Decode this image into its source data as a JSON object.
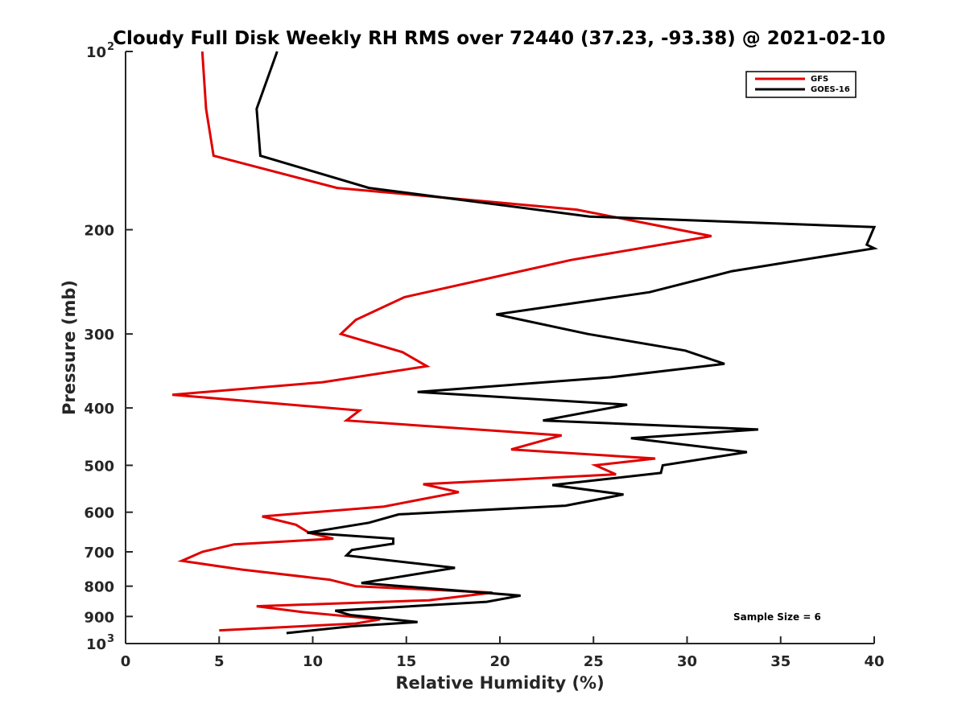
{
  "chart_data": {
    "type": "line",
    "title": "Cloudy Full Disk Weekly RH RMS over 72440 (37.23, -93.38) @ 2021-02-10",
    "xlabel": "Relative Humidity (%)",
    "ylabel": "Pressure (mb)",
    "xlim": [
      0,
      40
    ],
    "ylim": [
      100,
      1000
    ],
    "y_scale": "log",
    "y_reversed": true,
    "x_ticks": [
      "0",
      "5",
      "10",
      "15",
      "20",
      "25",
      "30",
      "35",
      "40"
    ],
    "y_ticks": [
      {
        "value": 100,
        "label": "10",
        "sup": "2"
      },
      {
        "value": 200,
        "label": "200",
        "sup": ""
      },
      {
        "value": 300,
        "label": "300",
        "sup": ""
      },
      {
        "value": 400,
        "label": "400",
        "sup": ""
      },
      {
        "value": 500,
        "label": "500",
        "sup": ""
      },
      {
        "value": 600,
        "label": "600",
        "sup": ""
      },
      {
        "value": 700,
        "label": "700",
        "sup": ""
      },
      {
        "value": 800,
        "label": "800",
        "sup": ""
      },
      {
        "value": 900,
        "label": "900",
        "sup": ""
      },
      {
        "value": 1000,
        "label": "10",
        "sup": "3"
      }
    ],
    "grid": false,
    "legend_position": "top-right",
    "annotation": "Sample Size = 6",
    "series": [
      {
        "name": "GFS",
        "color": "#e00000",
        "points": [
          [
            4.1,
            100
          ],
          [
            4.3,
            125
          ],
          [
            4.7,
            150
          ],
          [
            11.3,
            170
          ],
          [
            24.1,
            185
          ],
          [
            31.3,
            205
          ],
          [
            23.8,
            225
          ],
          [
            14.9,
            260
          ],
          [
            12.3,
            284
          ],
          [
            11.5,
            300
          ],
          [
            14.8,
            322
          ],
          [
            16.1,
            340
          ],
          [
            10.5,
            362
          ],
          [
            2.5,
            380
          ],
          [
            12.5,
            404
          ],
          [
            11.8,
            420
          ],
          [
            23.3,
            445
          ],
          [
            20.6,
            470
          ],
          [
            28.3,
            487
          ],
          [
            25.1,
            500
          ],
          [
            26.2,
            518
          ],
          [
            15.9,
            538
          ],
          [
            17.8,
            555
          ],
          [
            13.8,
            587
          ],
          [
            7.3,
            610
          ],
          [
            9.1,
            630
          ],
          [
            9.8,
            650
          ],
          [
            11.1,
            665
          ],
          [
            5.8,
            680
          ],
          [
            4.1,
            700
          ],
          [
            3.0,
            725
          ],
          [
            6.2,
            750
          ],
          [
            10.9,
            780
          ],
          [
            12.3,
            800
          ],
          [
            19.6,
            820
          ],
          [
            16.2,
            845
          ],
          [
            7.0,
            865
          ],
          [
            9.5,
            885
          ],
          [
            13.6,
            910
          ],
          [
            12.3,
            925
          ],
          [
            5.0,
            950
          ]
        ]
      },
      {
        "name": "GOES-16",
        "color": "#000000",
        "points": [
          [
            8.1,
            100
          ],
          [
            7.0,
            125
          ],
          [
            7.2,
            150
          ],
          [
            13.0,
            170
          ],
          [
            24.8,
            190
          ],
          [
            40.0,
            198
          ],
          [
            39.6,
            212
          ],
          [
            40.0,
            215
          ],
          [
            32.4,
            235
          ],
          [
            28.0,
            255
          ],
          [
            19.8,
            278
          ],
          [
            24.7,
            300
          ],
          [
            29.9,
            320
          ],
          [
            32.0,
            337
          ],
          [
            25.9,
            355
          ],
          [
            15.6,
            376
          ],
          [
            26.8,
            395
          ],
          [
            22.3,
            420
          ],
          [
            33.8,
            435
          ],
          [
            27.0,
            450
          ],
          [
            33.2,
            475
          ],
          [
            28.7,
            500
          ],
          [
            28.6,
            515
          ],
          [
            22.8,
            540
          ],
          [
            26.6,
            560
          ],
          [
            23.5,
            585
          ],
          [
            14.6,
            605
          ],
          [
            13.0,
            625
          ],
          [
            9.7,
            650
          ],
          [
            14.3,
            665
          ],
          [
            14.3,
            678
          ],
          [
            12.1,
            695
          ],
          [
            11.8,
            710
          ],
          [
            17.6,
            745
          ],
          [
            12.6,
            790
          ],
          [
            21.1,
            830
          ],
          [
            19.3,
            850
          ],
          [
            11.2,
            880
          ],
          [
            12.0,
            895
          ],
          [
            15.6,
            920
          ],
          [
            12.1,
            935
          ],
          [
            8.6,
            960
          ]
        ]
      }
    ]
  }
}
